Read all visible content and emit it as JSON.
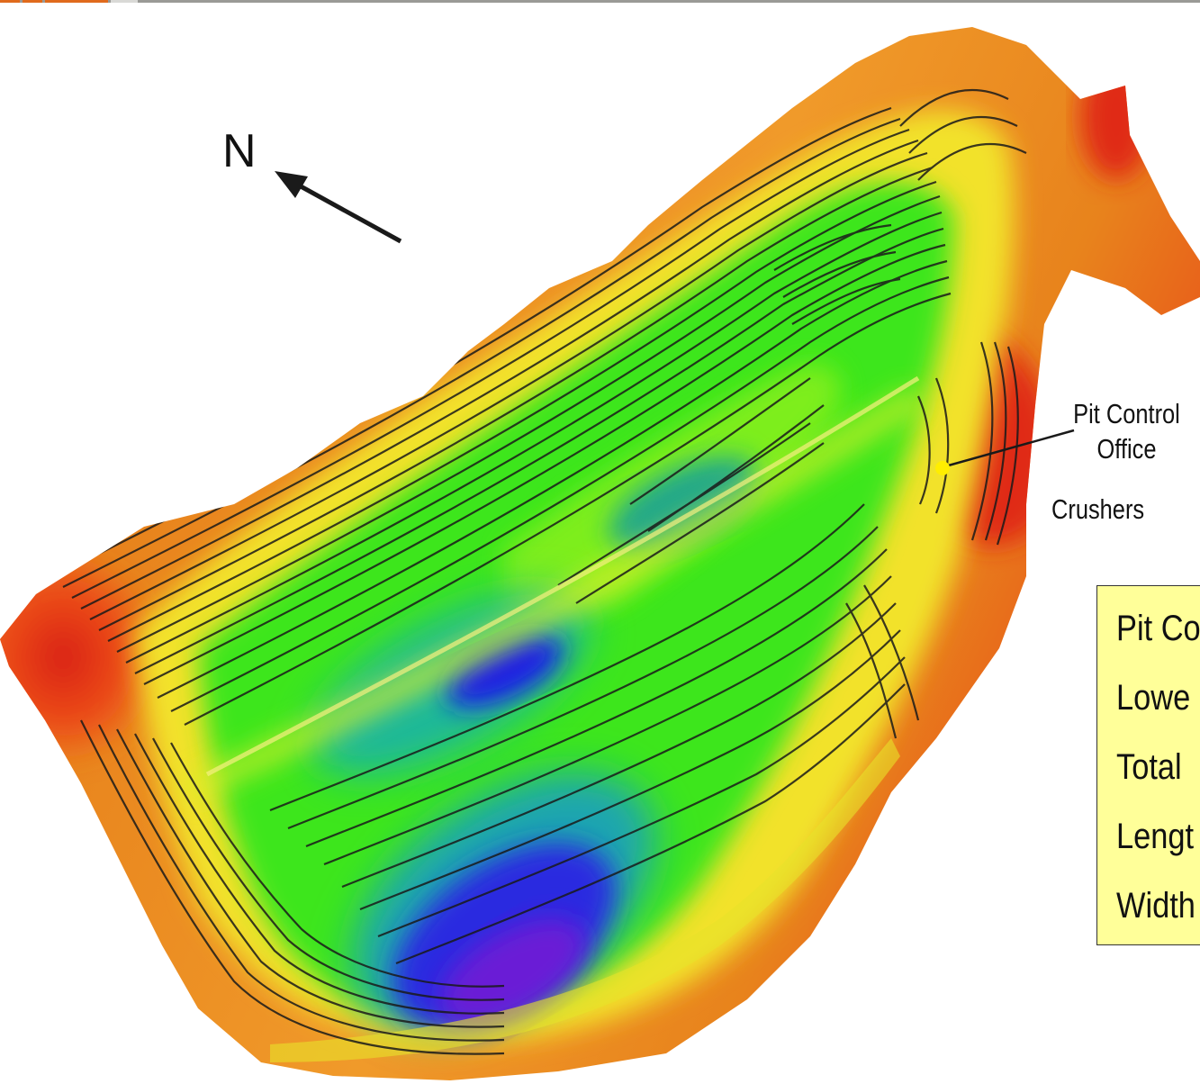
{
  "map": {
    "north_label": "N",
    "annotations": {
      "pit_control_office": [
        "Pit Control",
        "Office"
      ],
      "crushers": "Crushers"
    },
    "info_box": {
      "rows": [
        "Pit Co",
        "Lowe",
        "Total",
        "Lengt",
        "Width"
      ]
    },
    "colors": {
      "background": "#ffffff",
      "rim_orange": "#e8831c",
      "rim_red": "#e8291a",
      "mid_yellow": "#f2e22a",
      "mid_green": "#2ee61f",
      "deep_teal": "#1fa58a",
      "deep_blue": "#1a1ae6",
      "deep_purple": "#6a1ad6",
      "marker_yellow": "#ffee00",
      "info_box_fill": "#ffff99",
      "top_bar": "#9a9a96",
      "top_tab_orange": "#e06a1c"
    },
    "icons": [
      "north-arrow-icon",
      "office-marker-icon"
    ]
  }
}
